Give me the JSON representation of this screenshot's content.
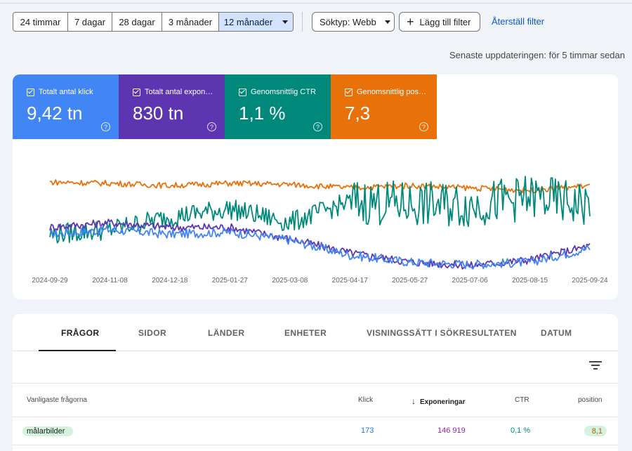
{
  "toolbar": {
    "date_ranges": [
      "24 timmar",
      "7 dagar",
      "28 dagar",
      "3 månader",
      "12 månader"
    ],
    "active_range": "12 månader",
    "search_type": "Söktyp: Webb",
    "add_filter": "Lägg till filter",
    "reset_filter": "Återställ filter"
  },
  "last_update": "Senaste uppdateringen: för 5 timmar sedan",
  "metrics": [
    {
      "label": "Totalt antal klick",
      "value": "9,42 tn",
      "color": "#4285f4"
    },
    {
      "label": "Totalt antal exponeringar",
      "value": "830 tn",
      "color": "#5e35b1"
    },
    {
      "label": "Genomsnittlig CTR",
      "value": "1,1 %",
      "color": "#00897b"
    },
    {
      "label": "Genomsnittlig position",
      "value": "7,3",
      "color": "#e8710a"
    }
  ],
  "chart_data": {
    "type": "line",
    "x": [
      "2024-09-29",
      "2024-11-08",
      "2024-12-18",
      "2025-01-27",
      "2025-03-08",
      "2025-04-17",
      "2025-05-27",
      "2025-07-06",
      "2025-08-15",
      "2025-09-24"
    ],
    "series": [
      {
        "name": "Totalt antal klick",
        "color": "#4285f4",
        "values": [
          0.3,
          0.34,
          0.3,
          0.32,
          0.25,
          0.12,
          0.06,
          0.04,
          0.06,
          0.18
        ]
      },
      {
        "name": "Totalt antal exponeringar",
        "color": "#5e35b1",
        "values": [
          0.36,
          0.4,
          0.36,
          0.36,
          0.26,
          0.14,
          0.06,
          0.03,
          0.08,
          0.2
        ]
      },
      {
        "name": "Genomsnittlig CTR",
        "color": "#00897b",
        "values": [
          0.3,
          0.34,
          0.45,
          0.52,
          0.4,
          0.58,
          0.56,
          0.55,
          0.62,
          0.55
        ]
      },
      {
        "name": "Genomsnittlig position",
        "color": "#e8710a",
        "values": [
          0.75,
          0.74,
          0.72,
          0.74,
          0.73,
          0.7,
          0.72,
          0.7,
          0.68,
          0.72
        ]
      }
    ],
    "grid": false,
    "legend": "none"
  },
  "tabs": [
    "FRÅGOR",
    "SIDOR",
    "LÄNDER",
    "ENHETER",
    "VISNINGSSÄTT I SÖKRESULTATEN",
    "DATUM"
  ],
  "table": {
    "headers": {
      "query": "Vanligaste frågorna",
      "clicks": "Klick",
      "impressions": "Exponeringar",
      "ctr": "CTR",
      "position": "position"
    },
    "rows": [
      {
        "query": "målarbilder",
        "clicks": "173",
        "impressions": "146 919",
        "ctr": "0,1 %",
        "position": "8,1"
      }
    ]
  }
}
